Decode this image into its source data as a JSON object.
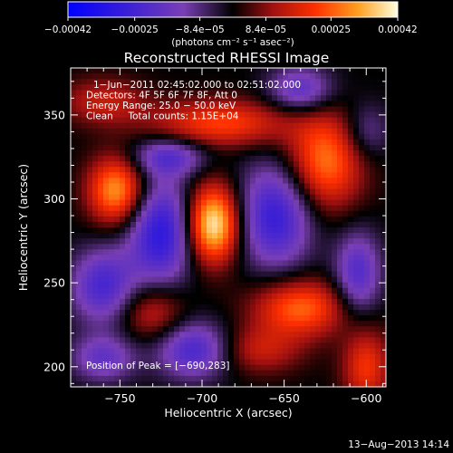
{
  "chart_data": {
    "type": "heatmap",
    "title": "Reconstructed RHESSI Image",
    "xlabel": "Heliocentric X (arcsec)",
    "ylabel": "Heliocentric Y (arcsec)",
    "xlim": [
      -780,
      -588
    ],
    "ylim": [
      188,
      378
    ],
    "x_ticks": [
      -750,
      -700,
      -650,
      -600
    ],
    "y_ticks": [
      200,
      250,
      300,
      350
    ],
    "x_tick_labels": [
      "−750",
      "−700",
      "−650",
      "−600"
    ],
    "y_tick_labels": [
      "200",
      "250",
      "300",
      "350"
    ],
    "colorbar": {
      "range": [
        -0.00042,
        0.00042
      ],
      "ticks": [
        -0.00042,
        -0.00025,
        -8.4e-05,
        8.4e-05,
        0.00025,
        0.00042
      ],
      "tick_labels": [
        "−0.00042",
        "−0.00025",
        "−8.4e−05",
        "8.4e−05",
        "0.00025",
        "0.00042"
      ],
      "units_label": "(photons cm⁻² s⁻¹ asec⁻²)"
    },
    "annotations": [
      "1−Jun−2011 02:45:02.000 to 02:51:02.000",
      "Detectors: 4F 5F 6F 7F 8F, Att 0",
      "Energy Range: 25.0 − 50.0 keV",
      "Clean     Total counts: 1.15E+04"
    ],
    "peak_label": "Position of Peak = [−690,283]",
    "peak": [
      -690,
      283
    ],
    "blobs": [
      {
        "x": -693,
        "y": 285,
        "amp": 0.00042,
        "sx": 11,
        "sy": 16
      },
      {
        "x": -752,
        "y": 305,
        "amp": 0.00032,
        "sx": 12,
        "sy": 14
      },
      {
        "x": -625,
        "y": 322,
        "amp": 0.00028,
        "sx": 16,
        "sy": 20
      },
      {
        "x": -640,
        "y": 235,
        "amp": 0.00026,
        "sx": 20,
        "sy": 12
      },
      {
        "x": -688,
        "y": 345,
        "amp": 0.00022,
        "sx": 30,
        "sy": 10
      },
      {
        "x": -760,
        "y": 358,
        "amp": 0.00014,
        "sx": 18,
        "sy": 10
      },
      {
        "x": -600,
        "y": 200,
        "amp": 0.0002,
        "sx": 10,
        "sy": 16
      },
      {
        "x": -730,
        "y": 232,
        "amp": 0.00016,
        "sx": 14,
        "sy": 12
      },
      {
        "x": -665,
        "y": 210,
        "amp": 0.00014,
        "sx": 18,
        "sy": 10
      },
      {
        "x": -725,
        "y": 280,
        "amp": -0.0003,
        "sx": 14,
        "sy": 22
      },
      {
        "x": -655,
        "y": 290,
        "amp": -0.00028,
        "sx": 16,
        "sy": 22
      },
      {
        "x": -760,
        "y": 248,
        "amp": -0.00024,
        "sx": 14,
        "sy": 16
      },
      {
        "x": -705,
        "y": 210,
        "amp": -0.00024,
        "sx": 16,
        "sy": 12
      },
      {
        "x": -605,
        "y": 255,
        "amp": -0.00022,
        "sx": 10,
        "sy": 18
      },
      {
        "x": -720,
        "y": 325,
        "amp": -0.0002,
        "sx": 16,
        "sy": 8
      },
      {
        "x": -640,
        "y": 365,
        "amp": -0.0002,
        "sx": 14,
        "sy": 10
      },
      {
        "x": -760,
        "y": 205,
        "amp": -0.00018,
        "sx": 14,
        "sy": 10
      },
      {
        "x": -600,
        "y": 340,
        "amp": -0.00012,
        "sx": 10,
        "sy": 12
      }
    ]
  },
  "footer": {
    "timestamp": "13−Aug−2013 14:14"
  }
}
